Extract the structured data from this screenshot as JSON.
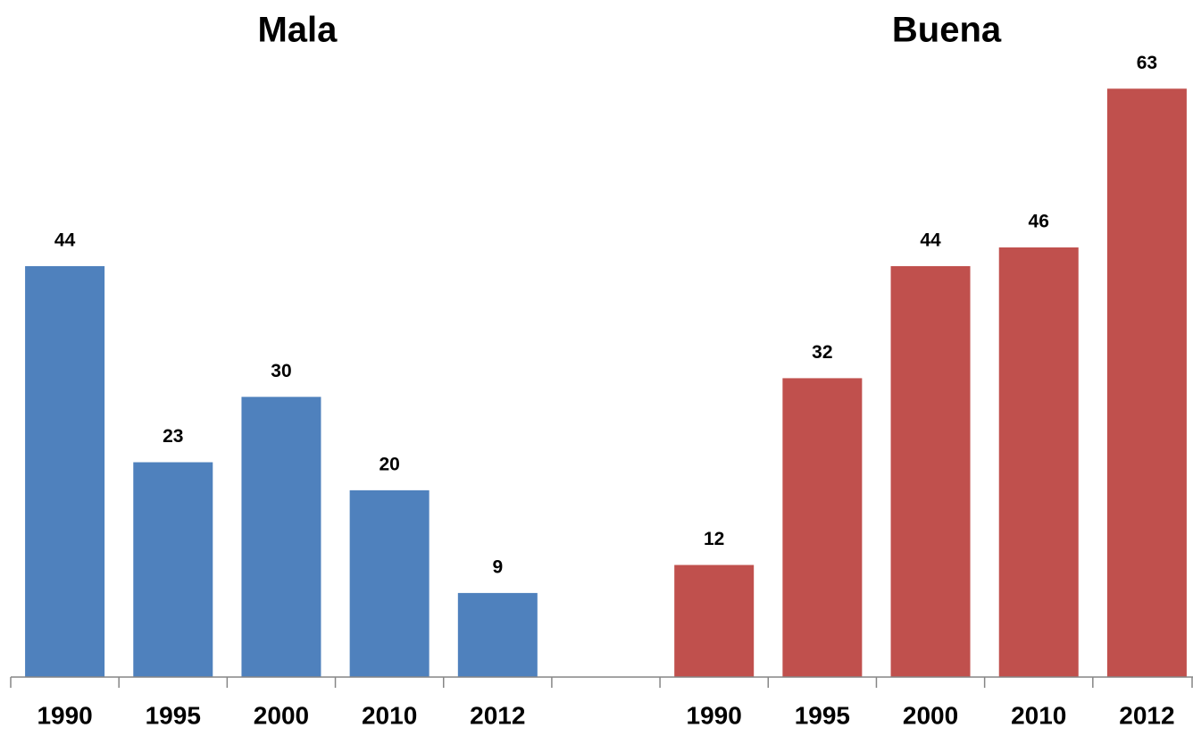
{
  "chart_data": {
    "type": "bar",
    "categories": [
      "1990",
      "1995",
      "2000",
      "2010",
      "2012",
      null,
      "1990",
      "1995",
      "2000",
      "2010",
      "2012"
    ],
    "series": [
      {
        "name": "Mala",
        "color": "#4f81bd",
        "values": [
          44,
          23,
          30,
          20,
          9,
          null,
          null,
          null,
          null,
          null,
          null
        ]
      },
      {
        "name": "Buena",
        "color": "#c0504d",
        "values": [
          null,
          null,
          null,
          null,
          null,
          null,
          12,
          32,
          44,
          46,
          63
        ]
      }
    ],
    "ylim": [
      0,
      68
    ]
  }
}
